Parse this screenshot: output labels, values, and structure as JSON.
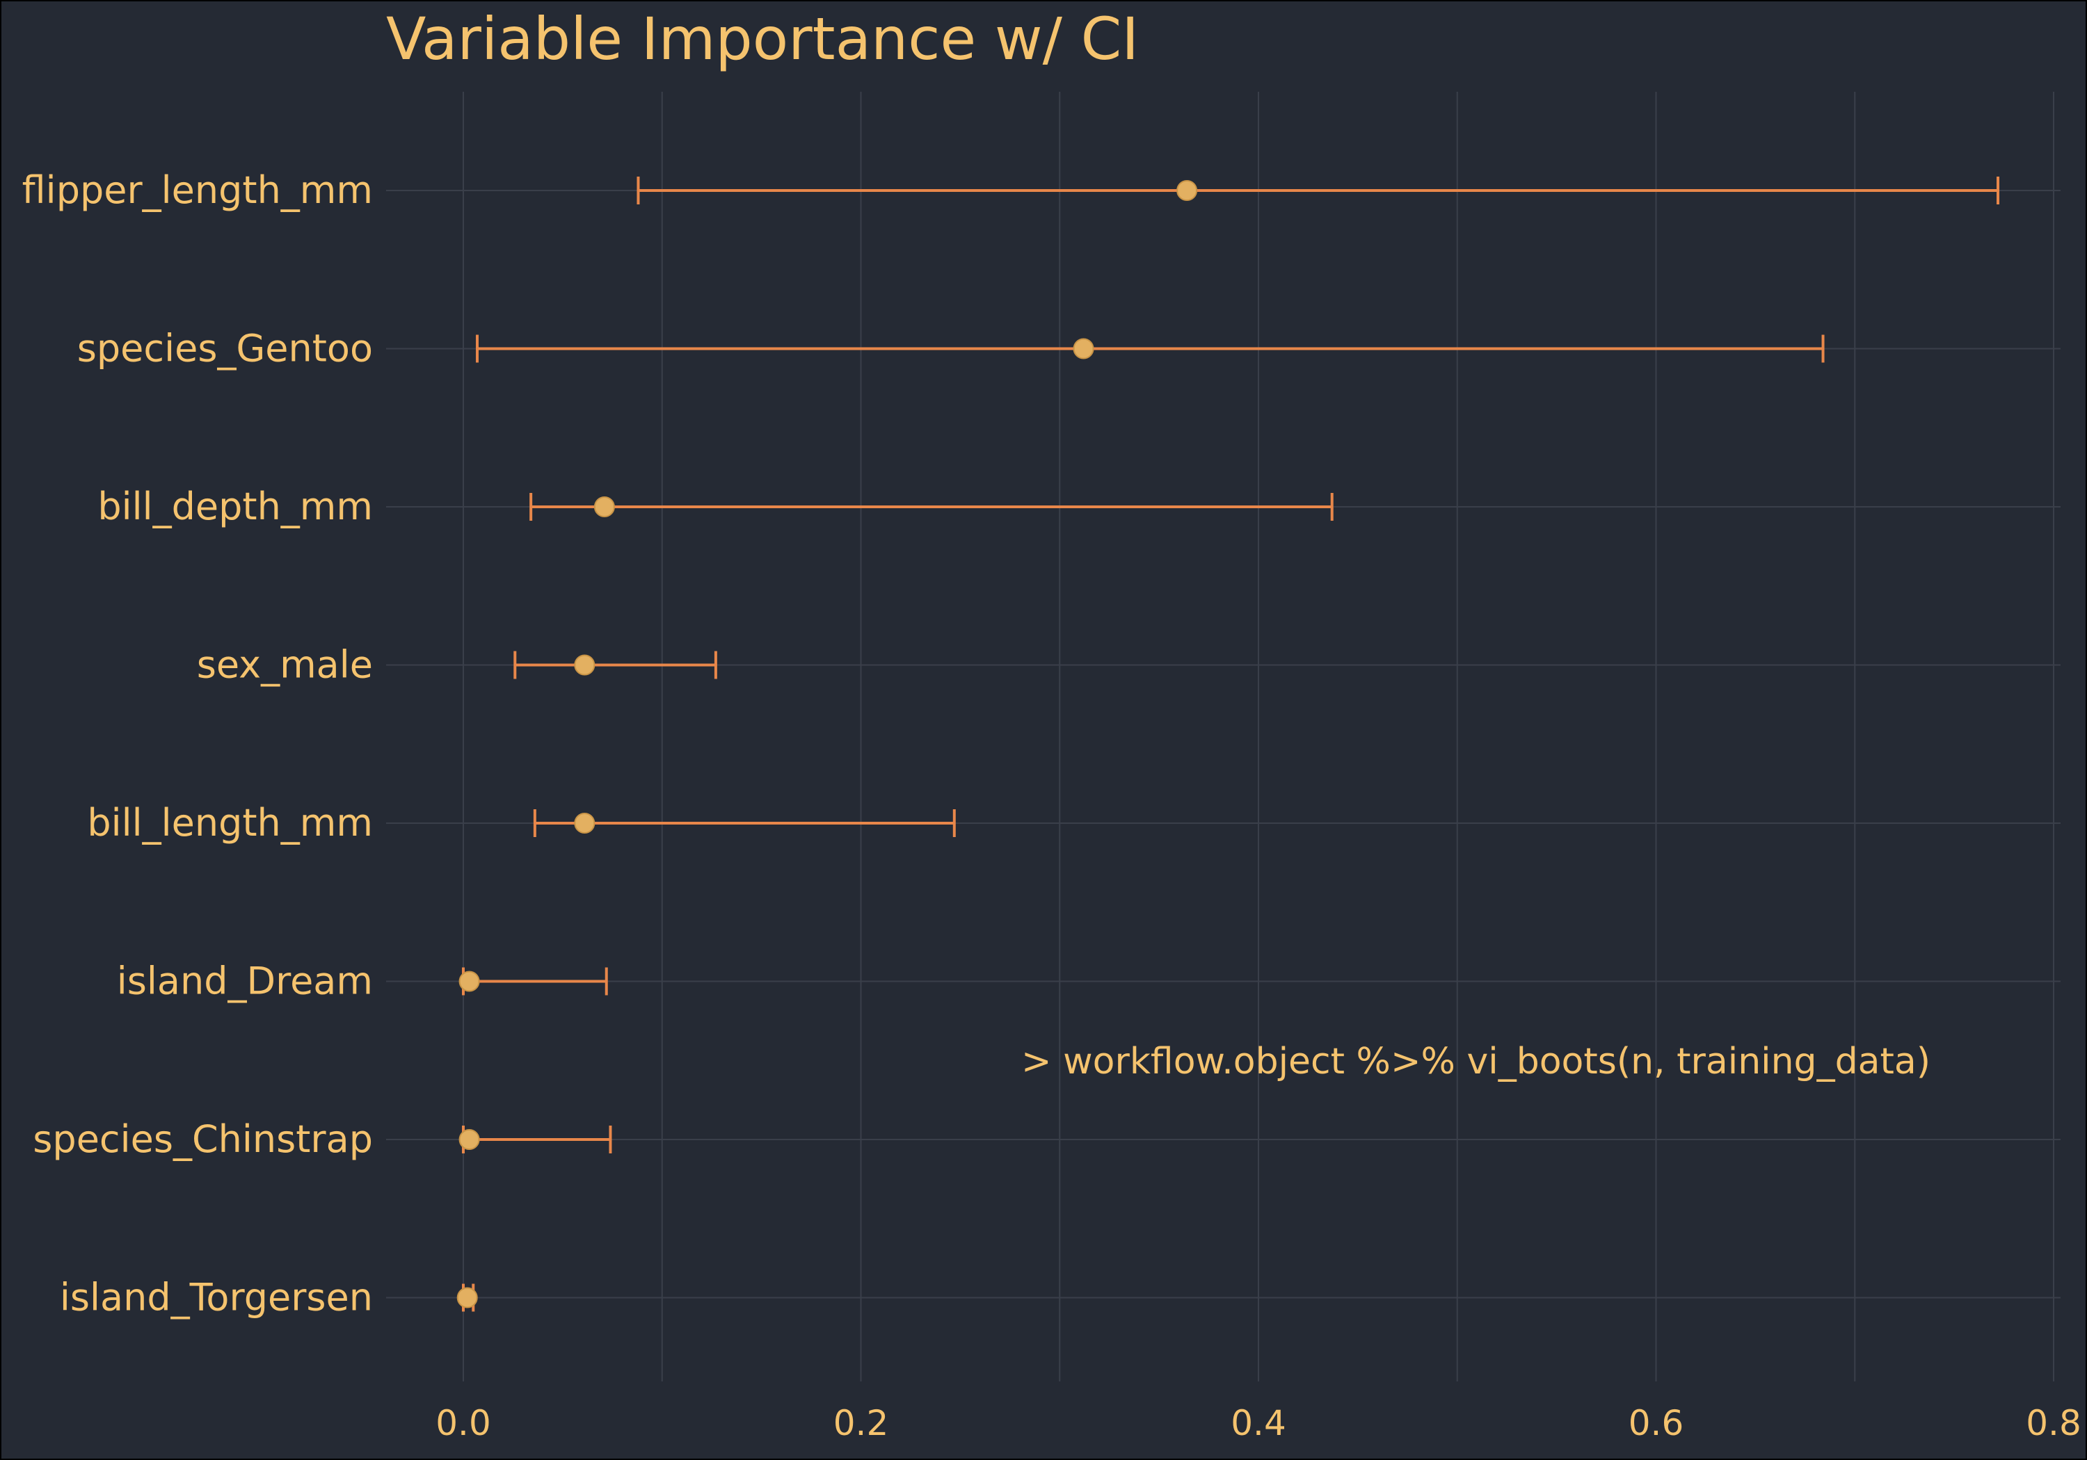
{
  "colors": {
    "background": "#252a34",
    "gridline": "#3a3f4a",
    "text": "#f5c36e",
    "error_bar": "#e8874a",
    "point": "#e3b061"
  },
  "chart_data": {
    "type": "scatter",
    "title": "Variable Importance w/ CI",
    "subtitle": "",
    "xlabel": "",
    "ylabel": "",
    "xlim": [
      -0.09,
      0.81
    ],
    "x_ticks": [
      0.0,
      0.2,
      0.4,
      0.6,
      0.8
    ],
    "x_tick_labels": [
      "0.0",
      "0.2",
      "0.4",
      "0.6",
      "0.8"
    ],
    "grid": true,
    "legend": "none",
    "categories": [
      "flipper_length_mm",
      "species_Gentoo",
      "bill_depth_mm",
      "sex_male",
      "bill_length_mm",
      "island_Dream",
      "species_Chinstrap",
      "island_Torgersen"
    ],
    "estimate": [
      0.364,
      0.312,
      0.071,
      0.061,
      0.061,
      0.003,
      0.003,
      0.002
    ],
    "lower": [
      0.088,
      0.007,
      0.034,
      0.026,
      0.036,
      0.0,
      0.0,
      0.0
    ],
    "upper": [
      0.772,
      0.684,
      0.437,
      0.127,
      0.247,
      0.072,
      0.074,
      0.005
    ],
    "annotation": ">   workflow.object %>% vi_boots(n, training_data)"
  }
}
